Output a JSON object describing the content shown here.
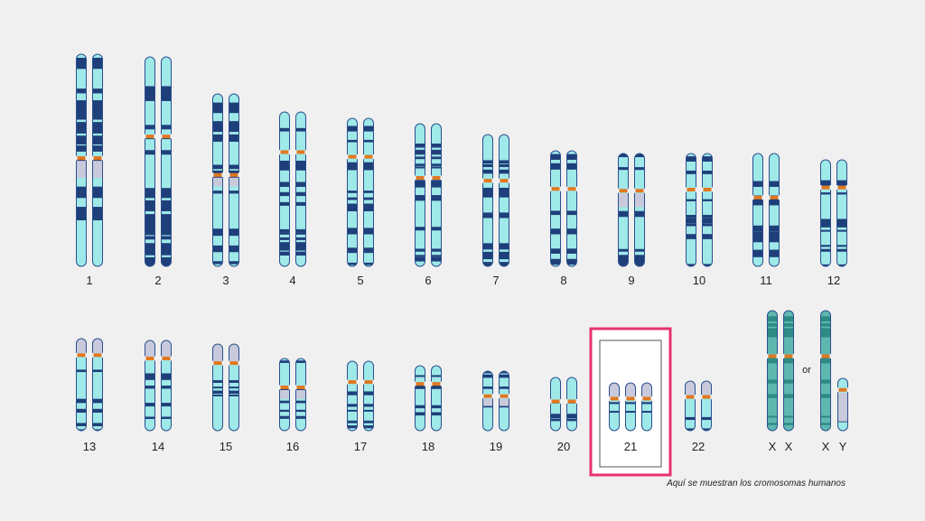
{
  "labels": {
    "c1": "1",
    "c2": "2",
    "c3": "3",
    "c4": "4",
    "c5": "5",
    "c6": "6",
    "c7": "7",
    "c8": "8",
    "c9": "9",
    "c10": "10",
    "c11": "11",
    "c12": "12",
    "c13": "13",
    "c14": "14",
    "c15": "15",
    "c16": "16",
    "c17": "17",
    "c18": "18",
    "c19": "19",
    "c20": "20",
    "c21": "21",
    "c22": "22",
    "x1": "X",
    "x2": "X",
    "x3": "X",
    "y": "Y"
  },
  "or_text": "or",
  "caption": "Aquí se muestran los cromosomas humanos",
  "colors": {
    "background": "#f0f0f0",
    "chromosome_fill": "#9fe9e9",
    "band_dark": "#1f3f7a",
    "sex_fill": "#5fb8b0",
    "sex_band": "#2d8a85",
    "centromere": "#e07820",
    "heterochromatin": "#c9c9dc",
    "outline": "#2b4f8f",
    "highlight_border": "#e8336e"
  },
  "highlight": "21"
}
